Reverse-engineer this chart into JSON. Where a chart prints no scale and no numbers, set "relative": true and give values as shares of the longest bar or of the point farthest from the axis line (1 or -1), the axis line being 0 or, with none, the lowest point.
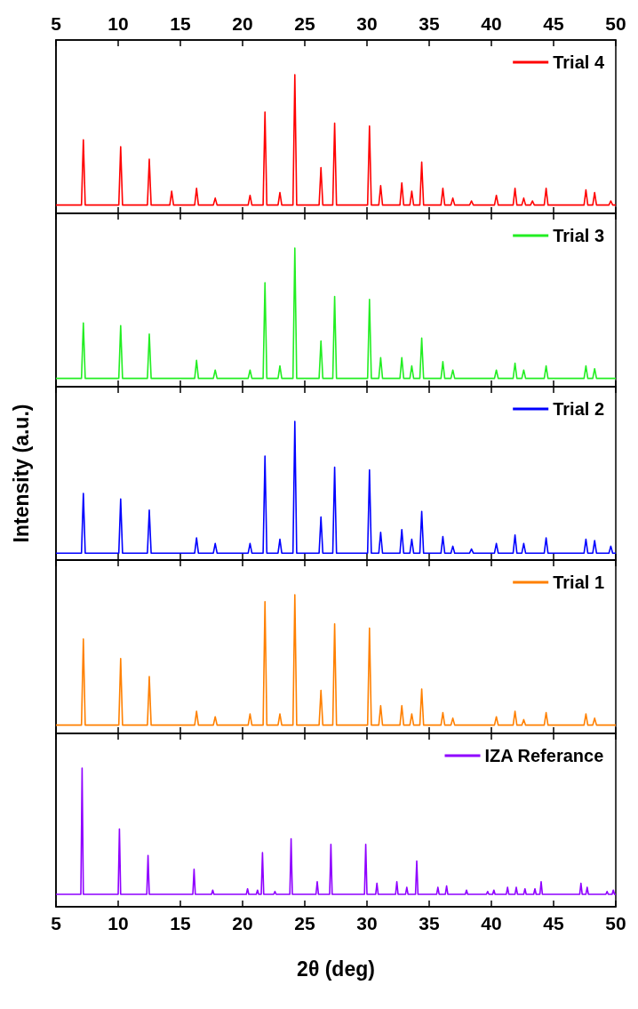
{
  "chart_data": [
    {
      "type": "line",
      "relative": true,
      "legend": "top right",
      "grid": false,
      "marker": "none",
      "tick_labels": "x2",
      "xlim": [
        5,
        50
      ],
      "x2lim": [
        5,
        50
      ],
      "x2ticks": [
        5,
        10,
        15,
        20,
        25,
        30,
        35,
        40,
        45,
        50
      ],
      "x": [
        5,
        7.05,
        7.2,
        7.35,
        10.05,
        10.2,
        10.35,
        12.35,
        12.5,
        12.65,
        14.15,
        14.3,
        14.45,
        16.15,
        16.3,
        16.45,
        17.65,
        17.8,
        17.95,
        20.45,
        20.6,
        20.75,
        21.65,
        21.8,
        21.95,
        22.85,
        23,
        23.15,
        24.05,
        24.2,
        24.35,
        26.15,
        26.3,
        26.45,
        27.25,
        27.4,
        27.55,
        30.05,
        30.2,
        30.35,
        30.95,
        31.1,
        31.25,
        32.65,
        32.8,
        32.95,
        33.45,
        33.6,
        33.75,
        34.25,
        34.4,
        34.55,
        35.95,
        36.1,
        36.25,
        36.75,
        36.9,
        37.05,
        38.25,
        38.4,
        38.55,
        40.25,
        40.4,
        40.55,
        41.75,
        41.9,
        42.05,
        42.45,
        42.6,
        42.75,
        43.15,
        43.3,
        43.45,
        44.25,
        44.4,
        44.55,
        47.45,
        47.6,
        47.75,
        48.15,
        48.3,
        48.45,
        49.45,
        49.6,
        49.75,
        50
      ],
      "series": [
        {
          "name": "Trial 4",
          "color": "#ff0000",
          "values": [
            0.06,
            0.06,
            0.53,
            0.06,
            0.06,
            0.48,
            0.06,
            0.06,
            0.39,
            0.06,
            0.06,
            0.16,
            0.06,
            0.06,
            0.18,
            0.06,
            0.06,
            0.11,
            0.06,
            0.06,
            0.13,
            0.06,
            0.06,
            0.73,
            0.06,
            0.06,
            0.15,
            0.06,
            0.06,
            1,
            0.06,
            0.06,
            0.33,
            0.06,
            0.06,
            0.65,
            0.06,
            0.06,
            0.63,
            0.06,
            0.06,
            0.2,
            0.06,
            0.06,
            0.22,
            0.06,
            0.06,
            0.16,
            0.06,
            0.06,
            0.37,
            0.06,
            0.06,
            0.18,
            0.06,
            0.06,
            0.11,
            0.06,
            0.06,
            0.09,
            0.06,
            0.06,
            0.13,
            0.06,
            0.06,
            0.18,
            0.06,
            0.06,
            0.11,
            0.06,
            0.06,
            0.09,
            0.06,
            0.06,
            0.18,
            0.06,
            0.06,
            0.17,
            0.06,
            0.06,
            0.15,
            0.06,
            0.06,
            0.09,
            0.06,
            0.06
          ]
        }
      ]
    },
    {
      "type": "line",
      "relative": true,
      "legend": "top right",
      "grid": false,
      "marker": "none",
      "tick_labels": false,
      "xlim": [
        5,
        50
      ],
      "xticks": [
        5,
        10,
        15,
        20,
        25,
        30,
        35,
        40,
        45,
        50
      ],
      "x": [
        5,
        7.05,
        7.2,
        7.35,
        10.05,
        10.2,
        10.35,
        12.35,
        12.5,
        12.65,
        16.15,
        16.3,
        16.45,
        17.65,
        17.8,
        17.95,
        20.45,
        20.6,
        20.75,
        21.65,
        21.8,
        21.95,
        22.85,
        23,
        23.15,
        24.05,
        24.2,
        24.35,
        26.15,
        26.3,
        26.45,
        27.25,
        27.4,
        27.55,
        30.05,
        30.2,
        30.35,
        30.95,
        31.1,
        31.25,
        32.65,
        32.8,
        32.95,
        33.45,
        33.6,
        33.75,
        34.25,
        34.4,
        34.55,
        35.95,
        36.1,
        36.25,
        36.75,
        36.9,
        37.05,
        40.25,
        40.4,
        40.55,
        41.75,
        41.9,
        42.05,
        42.45,
        42.6,
        42.75,
        44.25,
        44.4,
        44.55,
        47.45,
        47.6,
        47.75,
        48.15,
        48.3,
        48.45,
        50
      ],
      "series": [
        {
          "name": "Trial 3",
          "color": "#22ee22",
          "values": [
            0.06,
            0.06,
            0.46,
            0.06,
            0.06,
            0.44,
            0.06,
            0.06,
            0.38,
            0.06,
            0.06,
            0.19,
            0.06,
            0.06,
            0.12,
            0.06,
            0.06,
            0.12,
            0.06,
            0.06,
            0.75,
            0.06,
            0.06,
            0.15,
            0.06,
            0.06,
            1,
            0.06,
            0.06,
            0.33,
            0.06,
            0.06,
            0.65,
            0.06,
            0.06,
            0.63,
            0.06,
            0.06,
            0.21,
            0.06,
            0.06,
            0.21,
            0.06,
            0.06,
            0.15,
            0.06,
            0.06,
            0.35,
            0.06,
            0.06,
            0.18,
            0.06,
            0.06,
            0.12,
            0.06,
            0.06,
            0.12,
            0.06,
            0.06,
            0.17,
            0.06,
            0.06,
            0.12,
            0.06,
            0.06,
            0.15,
            0.06,
            0.06,
            0.15,
            0.06,
            0.06,
            0.13,
            0.06,
            0.06
          ]
        }
      ]
    },
    {
      "type": "line",
      "relative": true,
      "legend": "top right",
      "grid": false,
      "marker": "none",
      "tick_labels": false,
      "ylabel": "Intensity (a.u.)",
      "xlim": [
        5,
        50
      ],
      "xticks": [
        5,
        10,
        15,
        20,
        25,
        30,
        35,
        40,
        45,
        50
      ],
      "x": [
        5,
        7.05,
        7.2,
        7.35,
        10.05,
        10.2,
        10.35,
        12.35,
        12.5,
        12.65,
        16.15,
        16.3,
        16.45,
        17.65,
        17.8,
        17.95,
        20.45,
        20.6,
        20.75,
        21.65,
        21.8,
        21.95,
        22.85,
        23,
        23.15,
        24.05,
        24.2,
        24.35,
        26.15,
        26.3,
        26.45,
        27.25,
        27.4,
        27.55,
        30.05,
        30.2,
        30.35,
        30.95,
        31.1,
        31.25,
        32.65,
        32.8,
        32.95,
        33.45,
        33.6,
        33.75,
        34.25,
        34.4,
        34.55,
        35.95,
        36.1,
        36.25,
        36.75,
        36.9,
        37.05,
        38.25,
        38.4,
        38.55,
        40.25,
        40.4,
        40.55,
        41.75,
        41.9,
        42.05,
        42.45,
        42.6,
        42.75,
        44.25,
        44.4,
        44.55,
        47.45,
        47.6,
        47.75,
        48.15,
        48.3,
        48.45,
        49.45,
        49.6,
        49.75,
        50
      ],
      "series": [
        {
          "name": "Trial 2",
          "color": "#0000ff",
          "values": [
            0.05,
            0.05,
            0.48,
            0.05,
            0.05,
            0.44,
            0.05,
            0.05,
            0.36,
            0.05,
            0.05,
            0.16,
            0.05,
            0.05,
            0.12,
            0.05,
            0.05,
            0.12,
            0.05,
            0.05,
            0.75,
            0.05,
            0.05,
            0.15,
            0.05,
            0.05,
            1,
            0.05,
            0.05,
            0.31,
            0.05,
            0.05,
            0.67,
            0.05,
            0.05,
            0.65,
            0.05,
            0.05,
            0.2,
            0.05,
            0.05,
            0.22,
            0.05,
            0.05,
            0.15,
            0.05,
            0.05,
            0.35,
            0.05,
            0.05,
            0.17,
            0.05,
            0.05,
            0.1,
            0.05,
            0.05,
            0.08,
            0.05,
            0.05,
            0.12,
            0.05,
            0.05,
            0.18,
            0.05,
            0.05,
            0.12,
            0.05,
            0.05,
            0.16,
            0.05,
            0.05,
            0.15,
            0.05,
            0.05,
            0.14,
            0.05,
            0.05,
            0.1,
            0.05,
            0.05
          ]
        }
      ]
    },
    {
      "type": "line",
      "relative": true,
      "legend": "top right",
      "grid": false,
      "marker": "none",
      "tick_labels": false,
      "xlim": [
        5,
        50
      ],
      "xticks": [
        5,
        10,
        15,
        20,
        25,
        30,
        35,
        40,
        45,
        50
      ],
      "x": [
        5,
        7.05,
        7.2,
        7.35,
        10.05,
        10.2,
        10.35,
        12.35,
        12.5,
        12.65,
        16.15,
        16.3,
        16.45,
        17.65,
        17.8,
        17.95,
        20.45,
        20.6,
        20.75,
        21.65,
        21.8,
        21.95,
        22.85,
        23,
        23.15,
        24.05,
        24.2,
        24.35,
        26.15,
        26.3,
        26.45,
        27.25,
        27.4,
        27.55,
        30.05,
        30.2,
        30.35,
        30.95,
        31.1,
        31.25,
        32.65,
        32.8,
        32.95,
        33.45,
        33.6,
        33.75,
        34.25,
        34.4,
        34.55,
        35.95,
        36.1,
        36.25,
        36.75,
        36.9,
        37.05,
        40.25,
        40.4,
        40.55,
        41.75,
        41.9,
        42.05,
        42.45,
        42.6,
        42.75,
        44.25,
        44.4,
        44.55,
        47.45,
        47.6,
        47.75,
        48.15,
        48.3,
        48.45,
        50
      ],
      "series": [
        {
          "name": "Trial 1",
          "color": "#ff8000",
          "values": [
            0.06,
            0.06,
            0.68,
            0.06,
            0.06,
            0.54,
            0.06,
            0.06,
            0.41,
            0.06,
            0.06,
            0.16,
            0.06,
            0.06,
            0.12,
            0.06,
            0.06,
            0.14,
            0.06,
            0.06,
            0.95,
            0.06,
            0.06,
            0.14,
            0.06,
            0.06,
            1,
            0.06,
            0.06,
            0.31,
            0.06,
            0.06,
            0.79,
            0.06,
            0.06,
            0.76,
            0.06,
            0.06,
            0.2,
            0.06,
            0.06,
            0.2,
            0.06,
            0.06,
            0.14,
            0.06,
            0.06,
            0.32,
            0.06,
            0.06,
            0.15,
            0.06,
            0.06,
            0.11,
            0.06,
            0.06,
            0.12,
            0.06,
            0.06,
            0.16,
            0.06,
            0.06,
            0.1,
            0.06,
            0.06,
            0.15,
            0.06,
            0.06,
            0.14,
            0.06,
            0.06,
            0.11,
            0.06,
            0.06
          ]
        }
      ]
    },
    {
      "type": "line",
      "relative": true,
      "legend": "top right",
      "grid": false,
      "marker": "none",
      "xlabel": "2θ (deg)",
      "xlim": [
        5,
        50
      ],
      "xticks": [
        5,
        10,
        15,
        20,
        25,
        30,
        35,
        40,
        45,
        50
      ],
      "x": [
        5,
        7,
        7.1,
        7.2,
        10,
        10.1,
        10.2,
        12.3,
        12.4,
        12.5,
        16,
        16.1,
        16.2,
        17.5,
        17.6,
        17.7,
        20.3,
        20.4,
        20.5,
        21.1,
        21.2,
        21.3,
        21.5,
        21.6,
        21.7,
        22.5,
        22.6,
        22.7,
        23.8,
        23.9,
        24,
        25.9,
        26,
        26.1,
        27,
        27.1,
        27.2,
        29.8,
        29.9,
        30,
        30.7,
        30.8,
        30.9,
        32.3,
        32.4,
        32.5,
        33.1,
        33.2,
        33.3,
        33.9,
        34,
        34.1,
        35.6,
        35.7,
        35.8,
        36.3,
        36.4,
        36.5,
        37.9,
        38,
        38.1,
        39.6,
        39.7,
        39.8,
        40.1,
        40.2,
        40.3,
        41.2,
        41.3,
        41.4,
        41.9,
        42,
        42.1,
        42.6,
        42.7,
        42.8,
        43.4,
        43.5,
        43.6,
        43.9,
        44,
        44.1,
        47.1,
        47.2,
        47.3,
        47.6,
        47.7,
        47.8,
        49.2,
        49.3,
        49.4,
        49.7,
        49.8,
        49.9,
        50
      ],
      "series": [
        {
          "name": "IZA Referance",
          "color": "#8f00ff",
          "values": [
            0.09,
            0.09,
            1,
            0.09,
            0.09,
            0.56,
            0.09,
            0.09,
            0.37,
            0.09,
            0.09,
            0.27,
            0.09,
            0.09,
            0.12,
            0.09,
            0.09,
            0.13,
            0.09,
            0.09,
            0.12,
            0.09,
            0.09,
            0.39,
            0.09,
            0.09,
            0.11,
            0.09,
            0.09,
            0.49,
            0.09,
            0.09,
            0.18,
            0.09,
            0.09,
            0.45,
            0.09,
            0.09,
            0.45,
            0.09,
            0.09,
            0.17,
            0.09,
            0.09,
            0.18,
            0.09,
            0.09,
            0.14,
            0.09,
            0.09,
            0.33,
            0.09,
            0.09,
            0.14,
            0.09,
            0.09,
            0.15,
            0.09,
            0.09,
            0.12,
            0.09,
            0.09,
            0.11,
            0.09,
            0.09,
            0.12,
            0.09,
            0.09,
            0.14,
            0.09,
            0.09,
            0.14,
            0.09,
            0.09,
            0.13,
            0.09,
            0.09,
            0.13,
            0.09,
            0.09,
            0.18,
            0.09,
            0.09,
            0.17,
            0.09,
            0.09,
            0.14,
            0.09,
            0.09,
            0.11,
            0.09,
            0.09,
            0.12,
            0.09,
            0.09
          ]
        }
      ]
    }
  ]
}
